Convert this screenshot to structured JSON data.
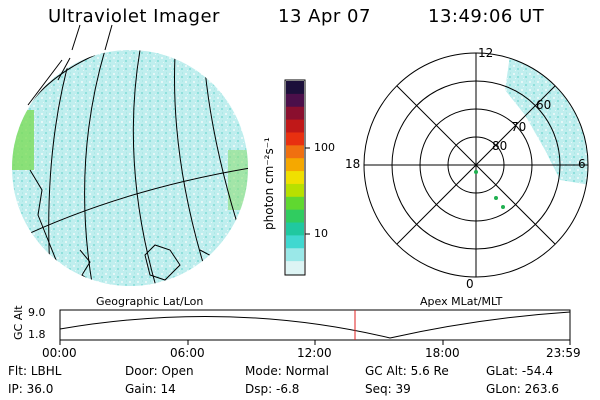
{
  "header": {
    "instrument": "Ultraviolet Imager",
    "date": "13 Apr 07",
    "time": "13:49:06 UT"
  },
  "panels": {
    "left_label": "Geographic Lat/Lon",
    "right_label": "Apex MLat/MLT"
  },
  "colorbar": {
    "unit": "photon cm⁻²s⁻¹",
    "ticks": [
      "100",
      "10"
    ],
    "colors": [
      "#1b0f3a",
      "#4b0f4a",
      "#8a0f2e",
      "#c01818",
      "#e83010",
      "#f07010",
      "#f5a800",
      "#f0e000",
      "#b8e000",
      "#60d830",
      "#30cc60",
      "#20c8a0",
      "#40d8d0",
      "#9ae8e8",
      "#ddf4f4"
    ]
  },
  "polar": {
    "mlt_labels": {
      "top": "12",
      "left": "18",
      "right": "6",
      "bottom": "0"
    },
    "lat_labels": [
      "80",
      "70",
      "60"
    ]
  },
  "altitude_plot": {
    "ylabel": "GC Alt",
    "yticks": [
      "9.0",
      "1.8"
    ],
    "xticks": [
      "00:00",
      "06:00",
      "12:00",
      "18:00",
      "23:59"
    ]
  },
  "info": {
    "row1": [
      {
        "label": "Flt:",
        "value": "LBHL"
      },
      {
        "label": "Door:",
        "value": "Open"
      },
      {
        "label": "Mode:",
        "value": "Normal"
      },
      {
        "label": "GC Alt:",
        "value": "5.6 Re"
      },
      {
        "label": "GLat:",
        "value": "-54.4"
      }
    ],
    "row2": [
      {
        "label": "IP:",
        "value": "36.0"
      },
      {
        "label": "Gain:",
        "value": "14"
      },
      {
        "label": "Dsp:",
        "value": "-6.8"
      },
      {
        "label": "Seq:",
        "value": "39"
      },
      {
        "label": "GLon:",
        "value": "263.6"
      }
    ]
  }
}
